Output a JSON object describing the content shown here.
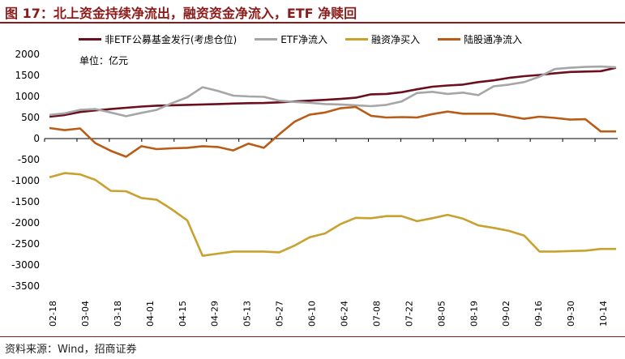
{
  "header": {
    "title": "图 17：北上资金持续净流出，融资资金净流入，ETF 净赎回"
  },
  "unit_label": "单位：亿元",
  "source": "资料来源：Wind，招商证券",
  "chart_data": {
    "type": "line",
    "title": "北上资金持续净流出，融资资金净流入，ETF 净赎回",
    "ylabel": "亿元",
    "ylim": [
      -3500,
      2000
    ],
    "yticks": [
      2000,
      1500,
      1000,
      500,
      0,
      -500,
      -1000,
      -1500,
      -2000,
      -2500,
      -3000,
      -3500
    ],
    "xticks": [
      "02-18",
      "03-04",
      "03-18",
      "04-01",
      "04-15",
      "04-29",
      "05-13",
      "05-27",
      "06-10",
      "06-24",
      "07-08",
      "07-22",
      "08-05",
      "08-19",
      "09-02",
      "09-16",
      "09-30",
      "10-14"
    ],
    "legend_position": "top",
    "series": [
      {
        "name": "非ETF公募基金发行(考虑仓位)",
        "color": "#6b0e1e",
        "values": [
          520,
          560,
          630,
          670,
          700,
          730,
          760,
          780,
          790,
          800,
          810,
          820,
          830,
          840,
          845,
          860,
          880,
          900,
          920,
          940,
          970,
          1050,
          1060,
          1100,
          1170,
          1230,
          1260,
          1280,
          1340,
          1380,
          1440,
          1480,
          1510,
          1550,
          1580,
          1590,
          1600,
          1680
        ]
      },
      {
        "name": "ETF净流入",
        "color": "#a6a6a6",
        "values": [
          560,
          600,
          680,
          700,
          620,
          530,
          610,
          680,
          840,
          980,
          1220,
          1130,
          1020,
          1000,
          990,
          900,
          870,
          850,
          820,
          810,
          790,
          770,
          800,
          880,
          1080,
          1110,
          1060,
          1090,
          1030,
          1240,
          1280,
          1340,
          1470,
          1650,
          1680,
          1700,
          1710,
          1690
        ]
      },
      {
        "name": "融资净买入",
        "color": "#c8a12e",
        "values": [
          -920,
          -820,
          -850,
          -980,
          -1240,
          -1250,
          -1410,
          -1450,
          -1680,
          -1940,
          -2780,
          -2730,
          -2680,
          -2680,
          -2680,
          -2700,
          -2540,
          -2340,
          -2250,
          -2030,
          -1880,
          -1890,
          -1840,
          -1840,
          -1960,
          -1890,
          -1810,
          -1900,
          -2060,
          -2120,
          -2190,
          -2300,
          -2680,
          -2680,
          -2670,
          -2660,
          -2620,
          -2620
        ]
      },
      {
        "name": "陆股通净流入",
        "color": "#b85c18",
        "values": [
          250,
          200,
          240,
          -110,
          -290,
          -430,
          -180,
          -250,
          -230,
          -220,
          -180,
          -200,
          -280,
          -120,
          -220,
          100,
          400,
          570,
          620,
          720,
          750,
          540,
          500,
          510,
          500,
          580,
          640,
          590,
          590,
          590,
          530,
          470,
          520,
          490,
          450,
          460,
          170,
          170
        ]
      }
    ]
  }
}
